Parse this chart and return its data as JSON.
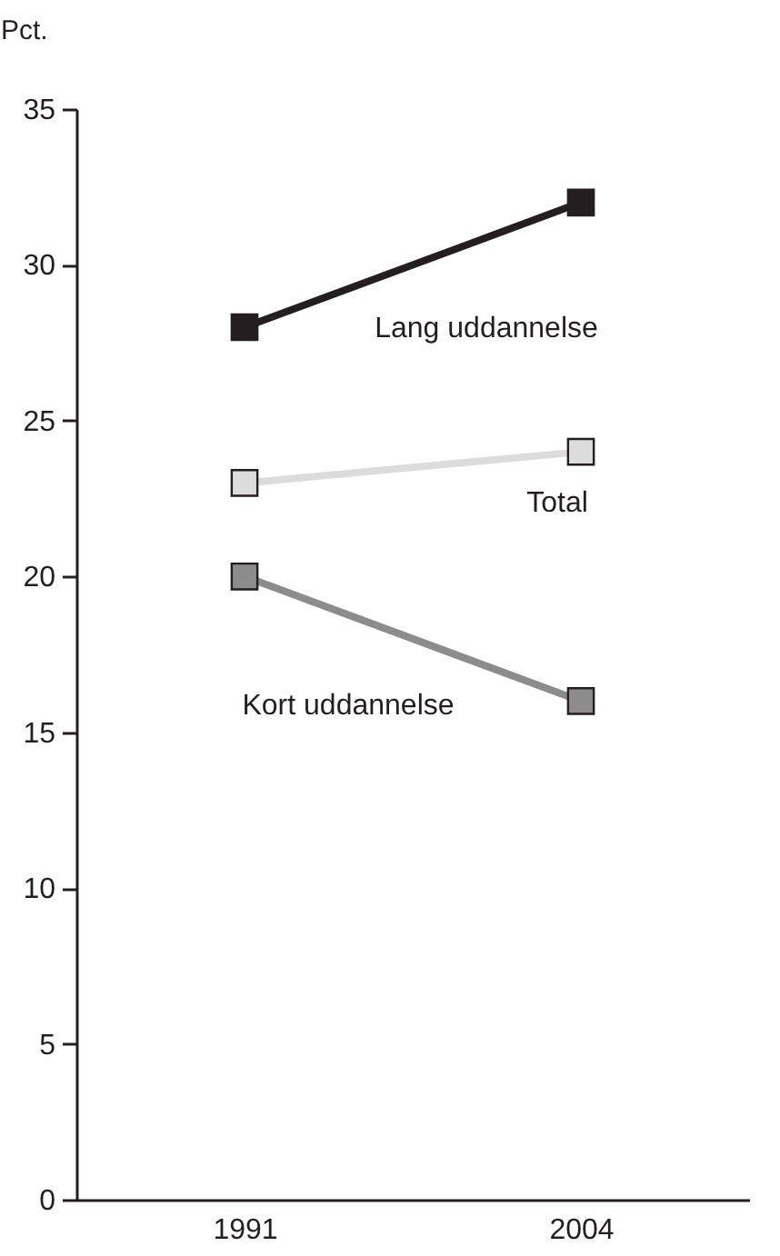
{
  "chart_data": {
    "type": "line",
    "ylabel": "Pct.",
    "categories": [
      "1991",
      "2004"
    ],
    "series": [
      {
        "name": "Lang uddannelse",
        "color": "#231f20",
        "values": [
          28,
          32
        ]
      },
      {
        "name": "Total",
        "color": "#dcdcdc",
        "values": [
          23,
          24
        ]
      },
      {
        "name": "Kort uddannelse",
        "color": "#8c8c8c",
        "values": [
          20,
          16
        ]
      }
    ],
    "ylim": [
      0,
      35
    ],
    "yticks": [
      0,
      5,
      10,
      15,
      20,
      25,
      30,
      35
    ],
    "marker": "square",
    "grid": false
  }
}
